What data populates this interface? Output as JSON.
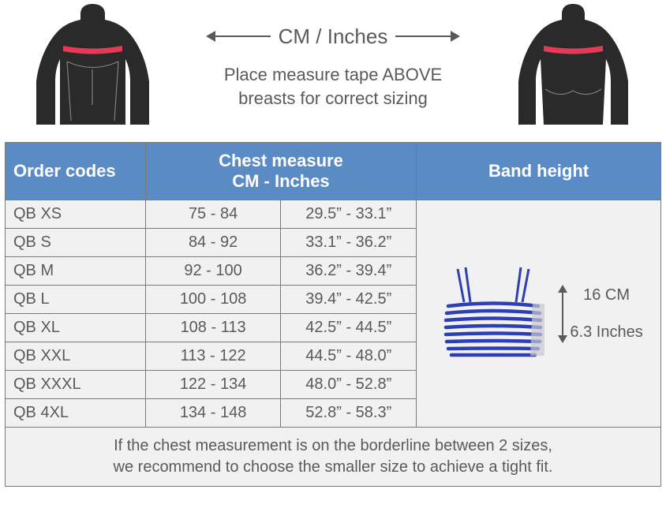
{
  "header": {
    "unit_label": "CM / Inches",
    "instruction_line1": "Place measure tape ABOVE",
    "instruction_line2": "breasts for correct sizing"
  },
  "table": {
    "headers": {
      "order_codes": "Order codes",
      "chest_measure_top": "Chest measure",
      "chest_measure_sub": "CM - Inches",
      "band_height": "Band height"
    },
    "rows": [
      {
        "code": "QB XS",
        "cm": "75 - 84",
        "inches": "29.5” - 33.1”"
      },
      {
        "code": "QB S",
        "cm": "84 - 92",
        "inches": "33.1” - 36.2”"
      },
      {
        "code": "QB M",
        "cm": "92 - 100",
        "inches": "36.2” - 39.4”"
      },
      {
        "code": "QB L",
        "cm": "100 - 108",
        "inches": "39.4” - 42.5”"
      },
      {
        "code": "QB XL",
        "cm": "108 - 113",
        "inches": "42.5” - 44.5”"
      },
      {
        "code": "QB XXL",
        "cm": "113 - 122",
        "inches": "44.5” - 48.0”"
      },
      {
        "code": "QB XXXL",
        "cm": "122 - 134",
        "inches": "48.0” - 52.8”"
      },
      {
        "code": "QB 4XL",
        "cm": "134 - 148",
        "inches": "52.8” - 58.3”"
      }
    ],
    "band_height": {
      "cm_label": "16 CM",
      "inches_label": "6.3 Inches"
    },
    "footer_line1": "If the chest measurement is on the borderline between 2 sizes,",
    "footer_line2": "we recommend to choose the smaller size to achieve a tight fit."
  },
  "colors": {
    "header_bg": "#5b8bc5",
    "header_text": "#ffffff",
    "body_text": "#5a5a5a",
    "table_bg": "#f1f1f1",
    "border": "#7a7a7a",
    "torso_fill": "#2a2a2a",
    "band_red": "#e63956",
    "product_blue": "#2d3fb5"
  }
}
